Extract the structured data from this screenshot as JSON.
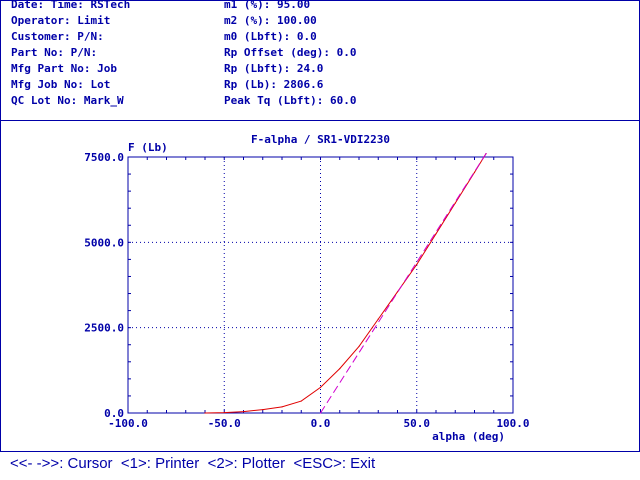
{
  "header": {
    "left": [
      "Date: Time: RSTech",
      "Operator: Limit",
      "Customer: P/N:",
      "Part No: P/N:",
      "Mfg Part No: Job",
      "Mfg Job No: Lot",
      "QC Lot No: Mark_W"
    ],
    "right": [
      "m1 (%): 95.00",
      "m2 (%): 100.00",
      "m0 (Lbft): 0.0",
      "Rp Offset (deg): 0.0",
      "Rp (Lbft): 24.0",
      "Rp (Lb): 2806.6",
      "Peak Tq (Lbft): 60.0"
    ]
  },
  "footer": {
    "text": "<<- ->>: Cursor  <1>: Printer  <2>: Plotter  <ESC>: Exit"
  },
  "colors": {
    "text": "#0000a8",
    "curve": "#e00000",
    "fit_line": "#d000d0"
  },
  "chart_data": {
    "type": "line",
    "title": "F-alpha / SR1-VDI2230",
    "xlabel": "alpha (deg)",
    "ylabel": "F (Lb)",
    "xlim": [
      -100,
      100
    ],
    "ylim": [
      0,
      7500
    ],
    "x_ticks": [
      -100,
      -50,
      0,
      50,
      100
    ],
    "x_tick_labels": [
      "-100.0",
      "-50.0",
      "0.0",
      "50.0",
      "100.0"
    ],
    "y_ticks": [
      0,
      2500,
      5000,
      7500
    ],
    "y_tick_labels": [
      "0.0",
      "2500.0",
      "5000.0",
      "7500.0"
    ],
    "grid": true,
    "series": [
      {
        "style": "solid",
        "x": [
          -60,
          -50,
          -40,
          -30,
          -20,
          -10,
          0,
          10,
          20,
          30,
          40,
          50,
          60,
          70,
          80,
          86
        ],
        "y": [
          0,
          10,
          40,
          100,
          180,
          350,
          750,
          1300,
          1950,
          2750,
          3550,
          4350,
          5250,
          6150,
          7050,
          7600
        ]
      },
      {
        "style": "dashed",
        "x": [
          0,
          86
        ],
        "y": [
          0,
          7600
        ]
      }
    ]
  }
}
